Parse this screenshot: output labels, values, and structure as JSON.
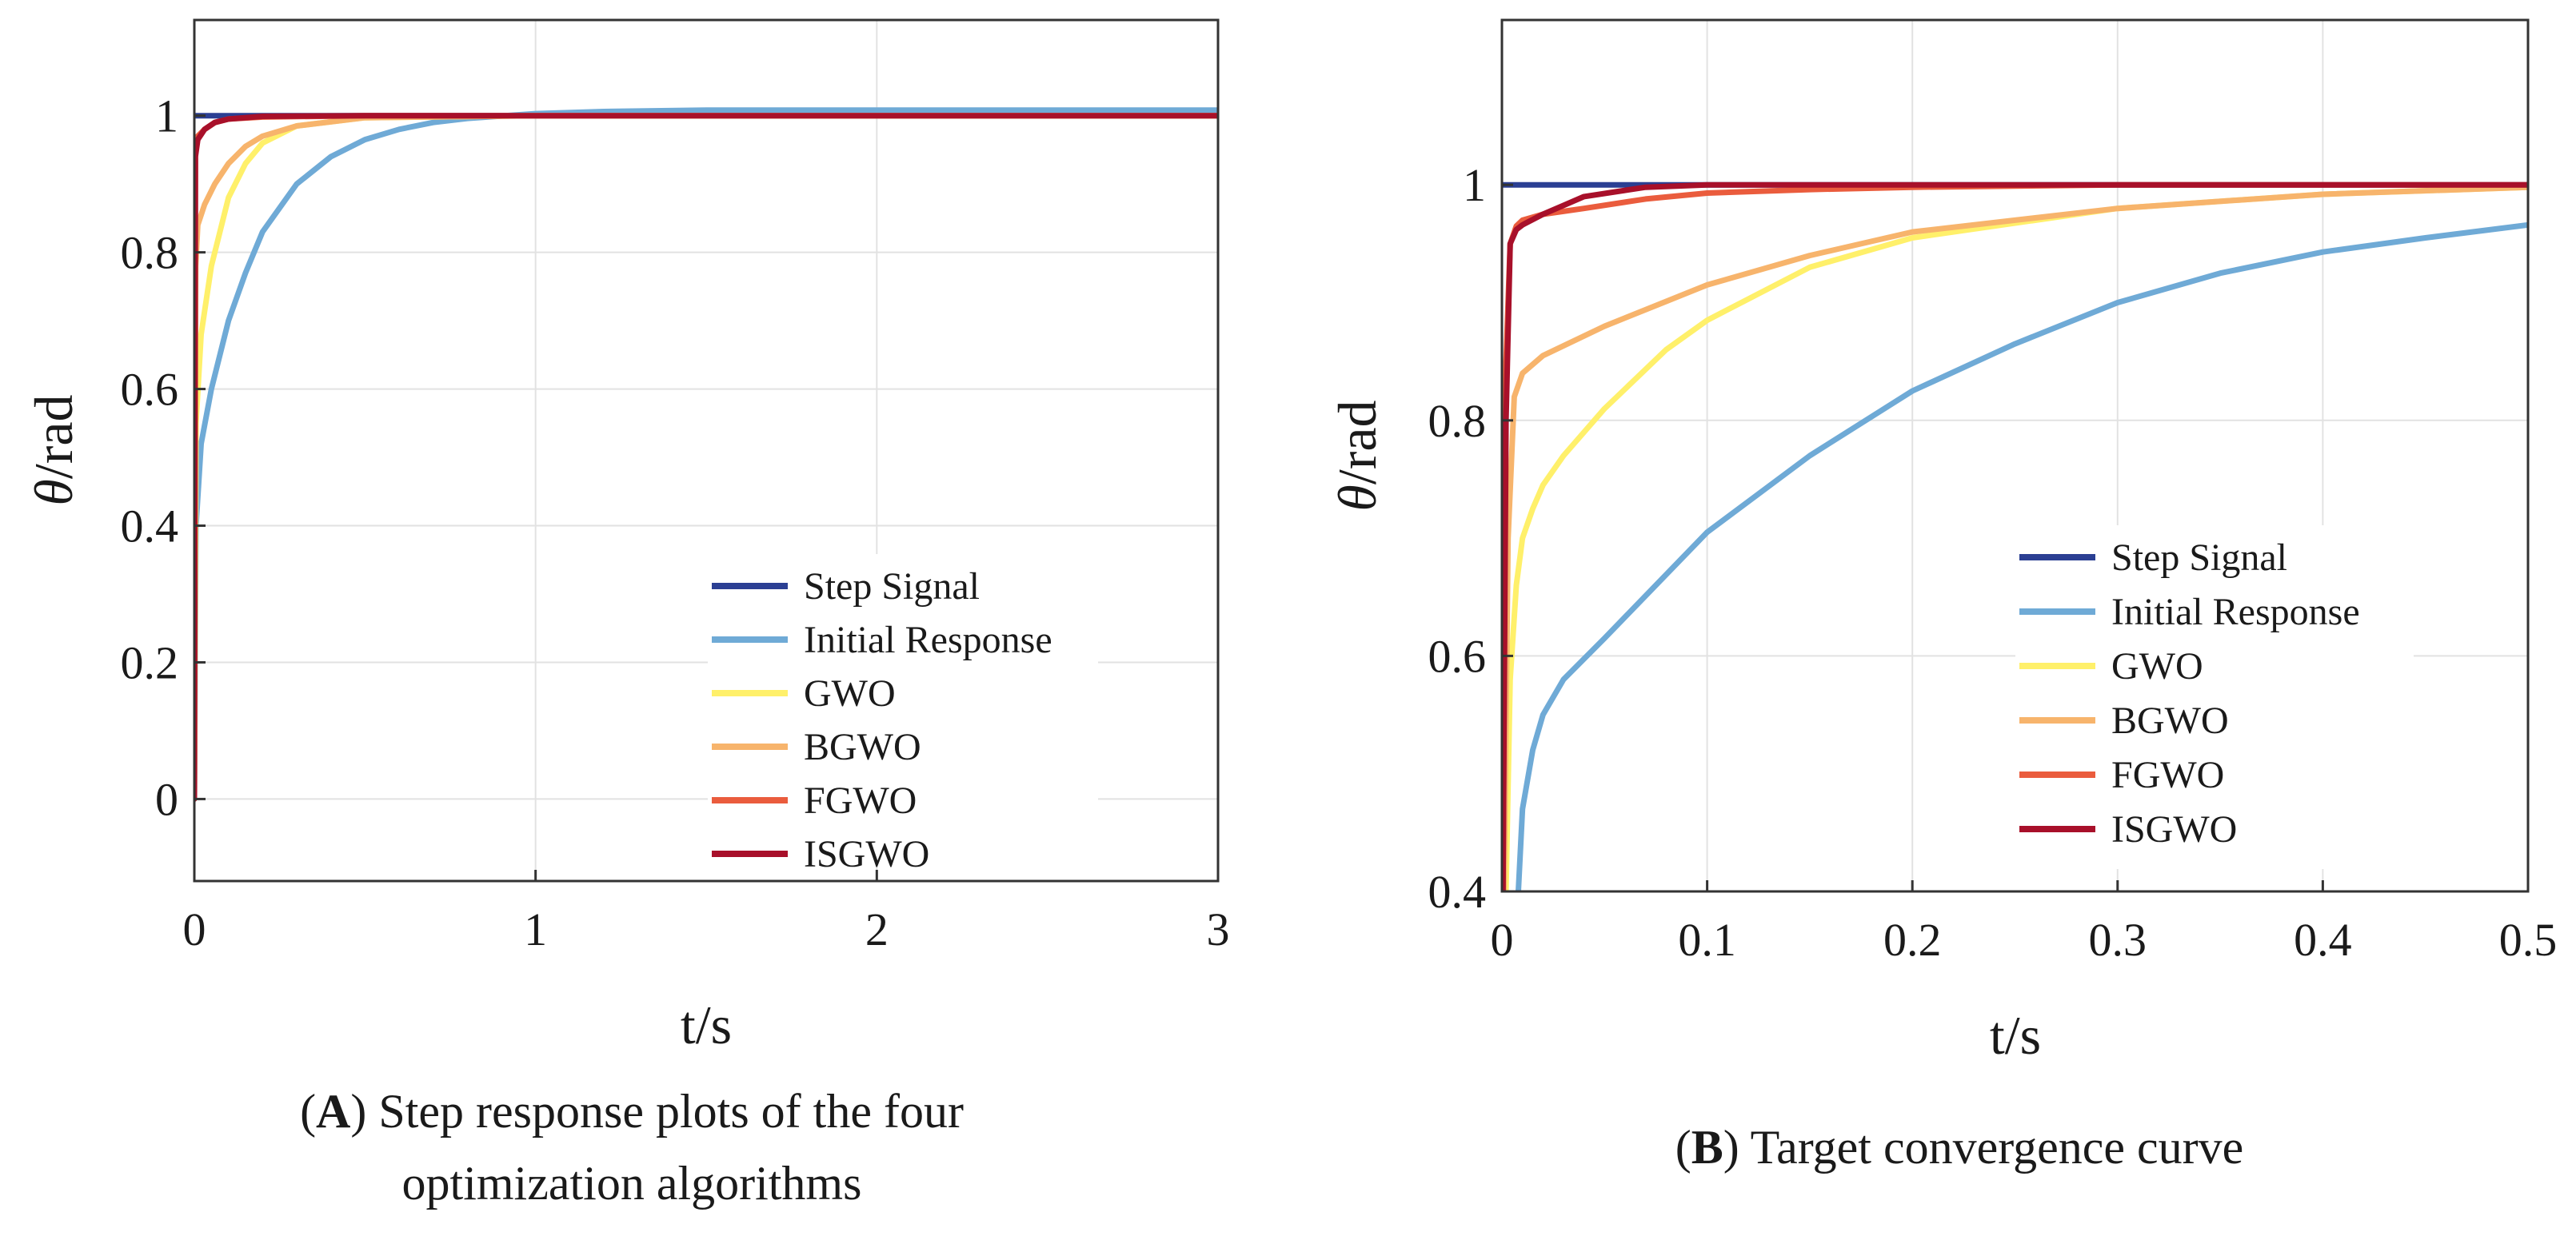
{
  "chart_data": [
    {
      "type": "line",
      "panel_letter": "A",
      "caption": "Step response plots of the four optimization algorithms",
      "xlabel": "t/s",
      "ylabel_symbol": "θ",
      "ylabel_unit": "/rad",
      "xlim": [
        0,
        3
      ],
      "ylim": [
        -0.12,
        1.14
      ],
      "xticks": [
        0,
        1,
        2,
        3
      ],
      "yticks": [
        0,
        0.2,
        0.4,
        0.6,
        0.8,
        1
      ],
      "grid": true,
      "legend_position": "bottom-right",
      "series": [
        {
          "name": "Step Signal",
          "color": "#2b3f93",
          "x": [
            0,
            0.001,
            3
          ],
          "y": [
            1,
            1,
            1
          ]
        },
        {
          "name": "Initial Response",
          "color": "#6faad6",
          "x": [
            0,
            0.005,
            0.02,
            0.05,
            0.1,
            0.15,
            0.2,
            0.3,
            0.4,
            0.5,
            0.6,
            0.7,
            0.8,
            1.0,
            1.2,
            1.5,
            2.0,
            2.5,
            3.0
          ],
          "y": [
            0,
            0.4,
            0.52,
            0.6,
            0.7,
            0.77,
            0.83,
            0.9,
            0.94,
            0.965,
            0.98,
            0.99,
            0.996,
            1.003,
            1.006,
            1.008,
            1.008,
            1.008,
            1.008
          ]
        },
        {
          "name": "GWO",
          "color": "#fff06a",
          "x": [
            0,
            0.005,
            0.02,
            0.05,
            0.1,
            0.15,
            0.2,
            0.3,
            0.5,
            1.0,
            2.0,
            3.0
          ],
          "y": [
            0,
            0.55,
            0.68,
            0.78,
            0.88,
            0.93,
            0.96,
            0.985,
            0.997,
            1.0,
            1.0,
            1.0
          ]
        },
        {
          "name": "BGWO",
          "color": "#f7b46c",
          "x": [
            0,
            0.004,
            0.01,
            0.03,
            0.06,
            0.1,
            0.15,
            0.2,
            0.3,
            0.5,
            1.0,
            3.0
          ],
          "y": [
            0,
            0.78,
            0.84,
            0.87,
            0.9,
            0.93,
            0.955,
            0.97,
            0.985,
            0.997,
            1.0,
            1.0
          ]
        },
        {
          "name": "FGWO",
          "color": "#ea5c3d",
          "x": [
            0,
            0.003,
            0.01,
            0.03,
            0.06,
            0.1,
            0.2,
            0.5,
            1.0,
            3.0
          ],
          "y": [
            0,
            0.95,
            0.97,
            0.98,
            0.99,
            0.995,
            0.998,
            1.0,
            1.0,
            1.0
          ]
        },
        {
          "name": "ISGWO",
          "color": "#a8102a",
          "x": [
            0,
            0.003,
            0.01,
            0.03,
            0.06,
            0.1,
            0.2,
            0.5,
            1.0,
            3.0
          ],
          "y": [
            0,
            0.94,
            0.965,
            0.98,
            0.99,
            0.995,
            0.999,
            1.0,
            1.0,
            1.0
          ]
        }
      ]
    },
    {
      "type": "line",
      "panel_letter": "B",
      "caption": "Target convergence curve",
      "xlabel": "t/s",
      "ylabel_symbol": "θ",
      "ylabel_unit": "/rad",
      "xlim": [
        0,
        0.5
      ],
      "ylim": [
        0.4,
        1.14
      ],
      "xticks": [
        0,
        0.1,
        0.2,
        0.3,
        0.4,
        0.5
      ],
      "yticks": [
        0.4,
        0.6,
        0.8,
        1
      ],
      "grid": true,
      "legend_position": "bottom-right",
      "series": [
        {
          "name": "Step Signal",
          "color": "#2b3f93",
          "x": [
            0,
            0.001,
            0.5
          ],
          "y": [
            1,
            1,
            1
          ]
        },
        {
          "name": "Initial Response",
          "color": "#6faad6",
          "x": [
            0.008,
            0.01,
            0.015,
            0.02,
            0.03,
            0.05,
            0.1,
            0.15,
            0.2,
            0.25,
            0.3,
            0.35,
            0.4,
            0.45,
            0.5
          ],
          "y": [
            0.4,
            0.47,
            0.52,
            0.55,
            0.58,
            0.615,
            0.705,
            0.77,
            0.825,
            0.865,
            0.9,
            0.925,
            0.943,
            0.955,
            0.966
          ]
        },
        {
          "name": "GWO",
          "color": "#fff06a",
          "x": [
            0.002,
            0.004,
            0.007,
            0.01,
            0.015,
            0.02,
            0.03,
            0.05,
            0.08,
            0.1,
            0.15,
            0.2,
            0.3,
            0.4,
            0.5
          ],
          "y": [
            0.4,
            0.58,
            0.66,
            0.7,
            0.725,
            0.745,
            0.77,
            0.81,
            0.86,
            0.885,
            0.93,
            0.955,
            0.98,
            0.992,
            0.998
          ]
        },
        {
          "name": "BGWO",
          "color": "#f7b46c",
          "x": [
            0.001,
            0.003,
            0.006,
            0.01,
            0.02,
            0.05,
            0.1,
            0.15,
            0.2,
            0.3,
            0.4,
            0.5
          ],
          "y": [
            0.4,
            0.7,
            0.82,
            0.84,
            0.855,
            0.88,
            0.915,
            0.94,
            0.96,
            0.98,
            0.992,
            0.998
          ]
        },
        {
          "name": "FGWO",
          "color": "#ea5c3d",
          "x": [
            0.0005,
            0.002,
            0.004,
            0.007,
            0.01,
            0.02,
            0.04,
            0.07,
            0.1,
            0.15,
            0.2,
            0.3,
            0.5
          ],
          "y": [
            0.4,
            0.85,
            0.95,
            0.965,
            0.97,
            0.975,
            0.98,
            0.988,
            0.993,
            0.996,
            0.998,
            1.0,
            1.0
          ]
        },
        {
          "name": "ISGWO",
          "color": "#a8102a",
          "x": [
            0.0005,
            0.002,
            0.004,
            0.007,
            0.01,
            0.02,
            0.04,
            0.07,
            0.1,
            0.2,
            0.5
          ],
          "y": [
            0.4,
            0.8,
            0.95,
            0.962,
            0.966,
            0.975,
            0.99,
            0.998,
            1.0,
            1.0,
            1.0
          ]
        }
      ]
    }
  ]
}
